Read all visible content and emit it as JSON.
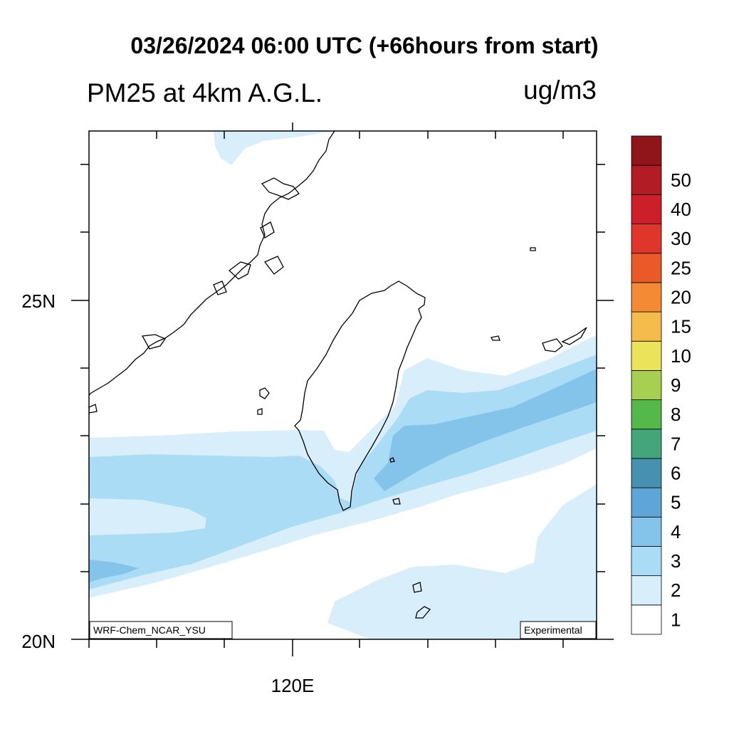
{
  "header": {
    "title": "03/26/2024 06:00 UTC (+66hours from start)",
    "variable": "PM25 at 4km A.G.L.",
    "units": "ug/m3"
  },
  "axes": {
    "x_tick_label": "120E",
    "y_tick_labels": [
      "25N",
      "20N"
    ]
  },
  "map": {
    "lon_range": [
      117,
      124.5
    ],
    "lat_range": [
      20,
      27.5
    ],
    "model_tag": "WRF-Chem_NCAR_YSU",
    "status_tag": "Experimental",
    "fill_colors": {
      "lvl1": "#d8eefb",
      "lvl2": "#aadcf5",
      "lvl3": "#84c3ea"
    }
  },
  "legend": {
    "levels": [
      "1",
      "2",
      "3",
      "4",
      "5",
      "6",
      "7",
      "8",
      "9",
      "10",
      "15",
      "20",
      "25",
      "30",
      "40",
      "50"
    ],
    "colors": [
      "#ffffff",
      "#d8eefb",
      "#aadcf5",
      "#84c3ea",
      "#5ea5d8",
      "#4691b0",
      "#45a57a",
      "#55b84a",
      "#a7cf52",
      "#ebe35a",
      "#f5bb4b",
      "#f48a34",
      "#ea5a28",
      "#e0352a",
      "#cc1f2a",
      "#b21c24",
      "#8f151a"
    ]
  }
}
